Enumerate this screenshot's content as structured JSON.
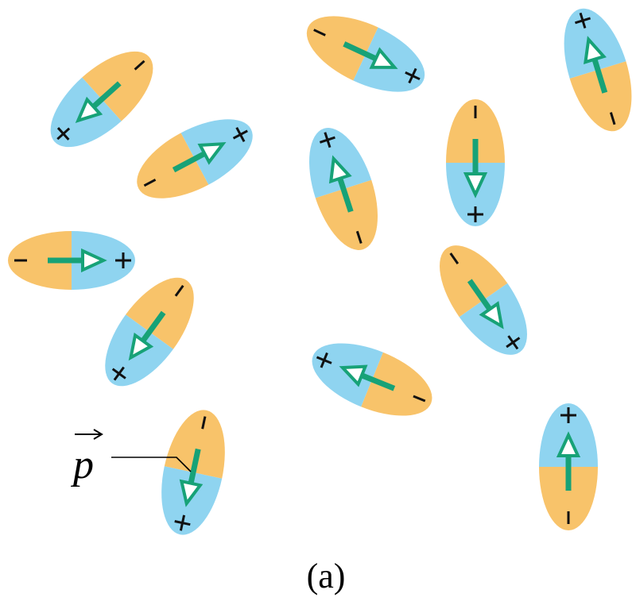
{
  "label": "p",
  "caption": "(a)"
}
